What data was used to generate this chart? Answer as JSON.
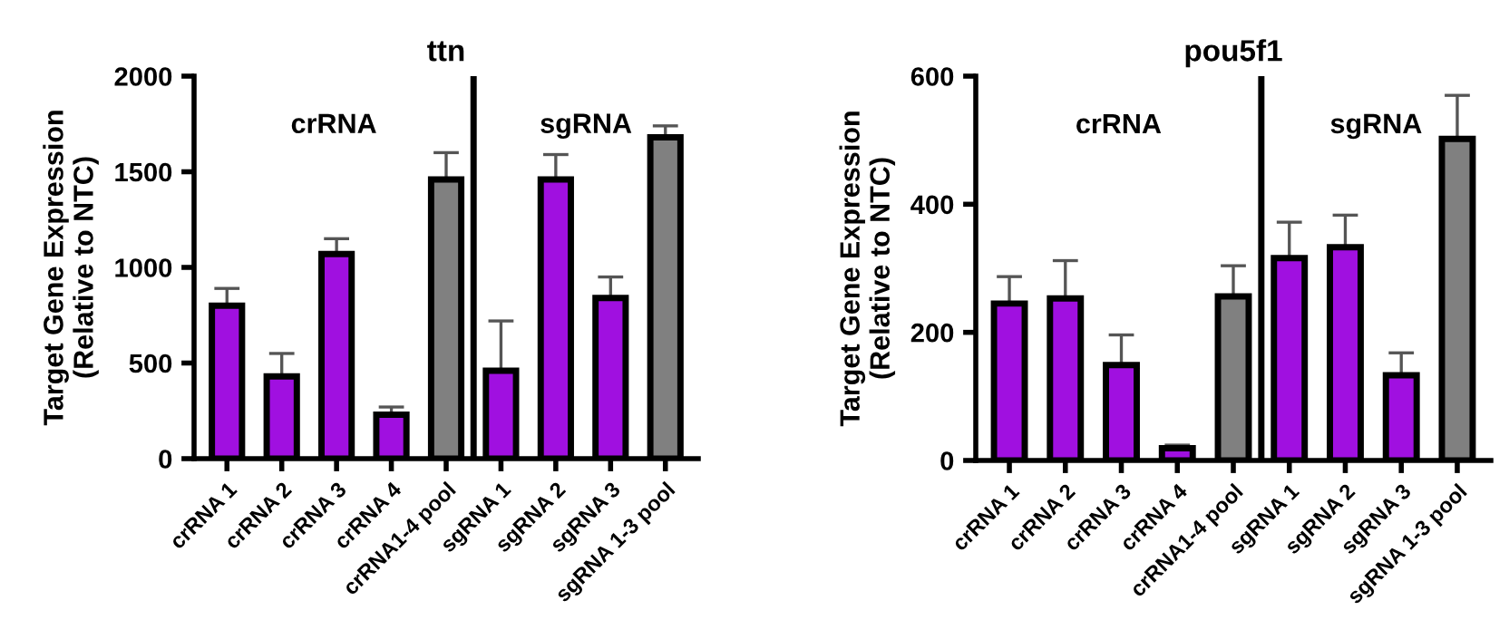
{
  "chart_data": [
    {
      "type": "bar",
      "title": "ttn",
      "ylabel": "Target Gene Expression\n(Relative to NTC)",
      "categories": [
        "crRNA 1",
        "crRNA 2",
        "crRNA 3",
        "crRNA 4",
        "crRNA1-4 pool",
        "sgRNA 1",
        "sgRNA 2",
        "sgRNA 3",
        "sgRNA 1-3 pool"
      ],
      "values": [
        800,
        430,
        1070,
        230,
        1460,
        460,
        1460,
        840,
        1680
      ],
      "errors": [
        [
          800,
          890
        ],
        [
          430,
          550
        ],
        [
          1070,
          1150
        ],
        [
          230,
          270
        ],
        [
          1460,
          1600
        ],
        [
          460,
          720
        ],
        [
          1460,
          1590
        ],
        [
          840,
          950
        ],
        [
          1680,
          1740
        ]
      ],
      "colors": [
        "#a010e0",
        "#a010e0",
        "#a010e0",
        "#a010e0",
        "#808080",
        "#a010e0",
        "#a010e0",
        "#a010e0",
        "#808080"
      ],
      "ylim": [
        0,
        2000
      ],
      "yticks": [
        0,
        500,
        1000,
        1500,
        2000
      ],
      "annotations": [
        "crRNA",
        "sgRNA"
      ],
      "grid": false,
      "legend": false
    },
    {
      "type": "bar",
      "title": "pou5f1",
      "ylabel": "Target Gene Expression\n(Relative to NTC)",
      "categories": [
        "crRNA 1",
        "crRNA 2",
        "crRNA 3",
        "crRNA 4",
        "crRNA1-4 pool",
        "sgRNA 1",
        "sgRNA 2",
        "sgRNA 3",
        "sgRNA 1-3 pool"
      ],
      "values": [
        245,
        253,
        149,
        19,
        256,
        316,
        333,
        133,
        502
      ],
      "errors": [
        [
          245,
          287
        ],
        [
          253,
          312
        ],
        [
          149,
          196
        ],
        [
          19,
          24
        ],
        [
          256,
          304
        ],
        [
          316,
          372
        ],
        [
          333,
          383
        ],
        [
          133,
          168
        ],
        [
          502,
          570
        ]
      ],
      "colors": [
        "#a010e0",
        "#a010e0",
        "#a010e0",
        "#a010e0",
        "#808080",
        "#a010e0",
        "#a010e0",
        "#a010e0",
        "#808080"
      ],
      "ylim": [
        0,
        600
      ],
      "yticks": [
        0,
        200,
        400,
        600
      ],
      "annotations": [
        "crRNA",
        "sgRNA"
      ],
      "grid": false,
      "legend": false
    }
  ]
}
